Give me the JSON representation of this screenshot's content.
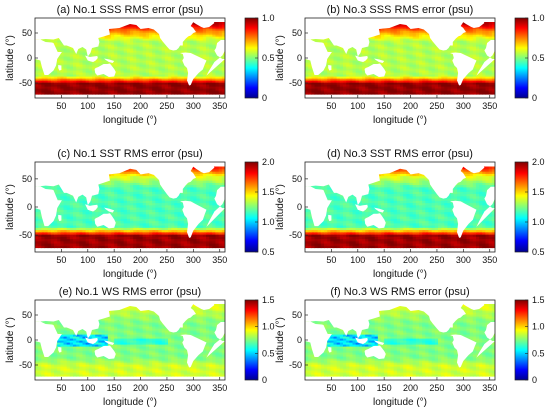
{
  "chart_data": [
    {
      "type": "heatmap",
      "id": "a",
      "title": "(a) No.1 SSS RMS error (psu)",
      "xlabel": "longitude (°)",
      "ylabel": "latitude (°)",
      "xlim": [
        0,
        360
      ],
      "ylim": [
        -80,
        80
      ],
      "xticks": [
        50,
        100,
        150,
        200,
        250,
        300,
        350
      ],
      "yticks": [
        -50,
        0,
        50
      ],
      "colorbar": {
        "min": 0,
        "max": 1.0,
        "ticks": [
          "1.0",
          "0.5",
          "0"
        ]
      },
      "field": {
        "equator": 0.55,
        "north50": 0.75,
        "north70": 0.95,
        "south55": 0.98
      }
    },
    {
      "type": "heatmap",
      "id": "b",
      "title": "(b) No.3 SSS RMS error (psu)",
      "xlabel": "longitude (°)",
      "ylabel": "latitude (°)",
      "xlim": [
        0,
        360
      ],
      "ylim": [
        -80,
        80
      ],
      "xticks": [
        50,
        100,
        150,
        200,
        250,
        300,
        350
      ],
      "yticks": [
        -50,
        0,
        50
      ],
      "colorbar": {
        "min": 0,
        "max": 1.0,
        "ticks": [
          "1.0",
          "0.5",
          "0"
        ]
      },
      "field": {
        "equator": 0.55,
        "north50": 0.75,
        "north70": 0.95,
        "south55": 0.98
      }
    },
    {
      "type": "heatmap",
      "id": "c",
      "title": "(c) No.1 SST RMS error (psu)",
      "xlabel": "longitude (°)",
      "ylabel": "latitude (°)",
      "xlim": [
        0,
        360
      ],
      "ylim": [
        -80,
        80
      ],
      "xticks": [
        50,
        100,
        150,
        200,
        250,
        300,
        350
      ],
      "yticks": [
        -50,
        0,
        50
      ],
      "colorbar": {
        "min": 0.5,
        "max": 2.0,
        "ticks": [
          "2.0",
          "1.5",
          "1.0",
          "0.5"
        ]
      },
      "field": {
        "equator": 0.45,
        "north50": 0.6,
        "north70": 0.85,
        "south55": 0.97
      }
    },
    {
      "type": "heatmap",
      "id": "d",
      "title": "(d) No.3 SST RMS error (psu)",
      "xlabel": "longitude (°)",
      "ylabel": "latitude (°)",
      "xlim": [
        0,
        360
      ],
      "ylim": [
        -80,
        80
      ],
      "xticks": [
        50,
        100,
        150,
        200,
        250,
        300,
        350
      ],
      "yticks": [
        -50,
        0,
        50
      ],
      "colorbar": {
        "min": 0.5,
        "max": 2.0,
        "ticks": [
          "2.0",
          "1.5",
          "1.0",
          "0.5"
        ]
      },
      "field": {
        "equator": 0.45,
        "north50": 0.6,
        "north70": 0.85,
        "south55": 0.97
      }
    },
    {
      "type": "heatmap",
      "id": "e",
      "title": "(e) No.1 WS RMS error (psu)",
      "xlabel": "longitude (°)",
      "ylabel": "latitude (°)",
      "xlim": [
        0,
        360
      ],
      "ylim": [
        -80,
        80
      ],
      "xticks": [
        50,
        100,
        150,
        200,
        250,
        300,
        350
      ],
      "yticks": [
        -50,
        0,
        50
      ],
      "colorbar": {
        "min": 0,
        "max": 1.5,
        "ticks": [
          "1.5",
          "1.0",
          "0.5",
          "0"
        ]
      },
      "field": {
        "equator": 0.5,
        "north50": 0.55,
        "north70": 0.6,
        "south55": 0.58
      }
    },
    {
      "type": "heatmap",
      "id": "f",
      "title": "(f) No.3 WS RMS error (psu)",
      "xlabel": "longitude (°)",
      "ylabel": "latitude (°)",
      "xlim": [
        0,
        360
      ],
      "ylim": [
        -80,
        80
      ],
      "xticks": [
        50,
        100,
        150,
        200,
        250,
        300,
        350
      ],
      "yticks": [
        -50,
        0,
        50
      ],
      "colorbar": {
        "min": 0,
        "max": 1.5,
        "ticks": [
          "1.5",
          "1.0",
          "0.5",
          "0"
        ]
      },
      "field": {
        "equator": 0.5,
        "north50": 0.55,
        "north70": 0.6,
        "south55": 0.58
      }
    }
  ]
}
